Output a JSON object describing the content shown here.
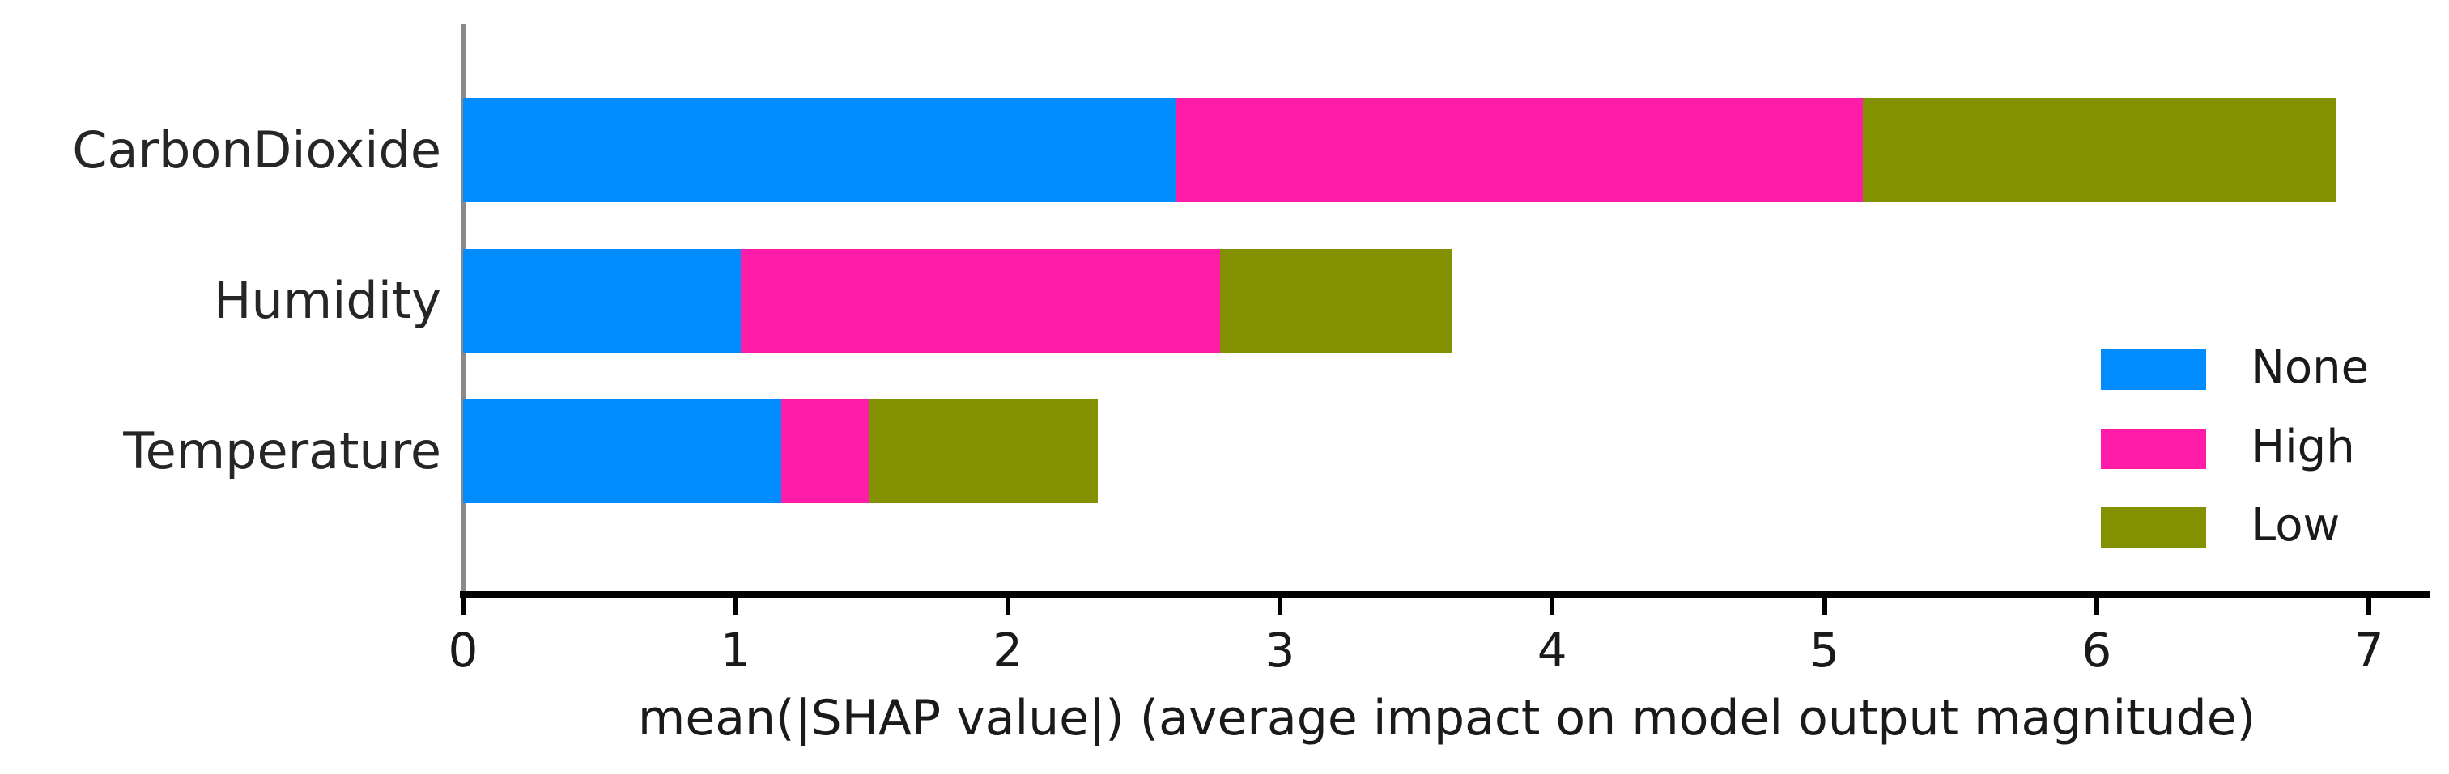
{
  "chart_data": {
    "type": "bar",
    "orientation": "horizontal",
    "stacked": true,
    "title": "",
    "categories": [
      "CarbonDioxide",
      "Humidity",
      "Temperature"
    ],
    "series": [
      {
        "name": "None",
        "color": "#008bff",
        "values": [
          2.62,
          1.02,
          1.17
        ]
      },
      {
        "name": "High",
        "color": "#ff1ca8",
        "values": [
          2.52,
          1.76,
          0.32
        ]
      },
      {
        "name": "Low",
        "color": "#839000",
        "values": [
          1.74,
          0.85,
          0.84
        ]
      }
    ],
    "totals": [
      6.88,
      3.63,
      2.33
    ],
    "xlabel": "mean(|SHAP value|) (average impact on model output magnitude)",
    "ylabel": "",
    "xticks": [
      0,
      1,
      2,
      3,
      4,
      5,
      6,
      7
    ],
    "xtick_labels": [
      "0",
      "1",
      "2",
      "3",
      "4",
      "5",
      "6",
      "7"
    ],
    "xlim": [
      0,
      7.23
    ],
    "grid": false,
    "legend": {
      "position": "right-center",
      "entries": [
        {
          "label": "None",
          "color": "#008bff"
        },
        {
          "label": "High",
          "color": "#ff1ca8"
        },
        {
          "label": "Low",
          "color": "#839000"
        }
      ]
    },
    "colors": {
      "spine": "#8a8a8a",
      "axis_line": "#000000",
      "text": "#1a1a1a",
      "background": "#ffffff"
    }
  }
}
